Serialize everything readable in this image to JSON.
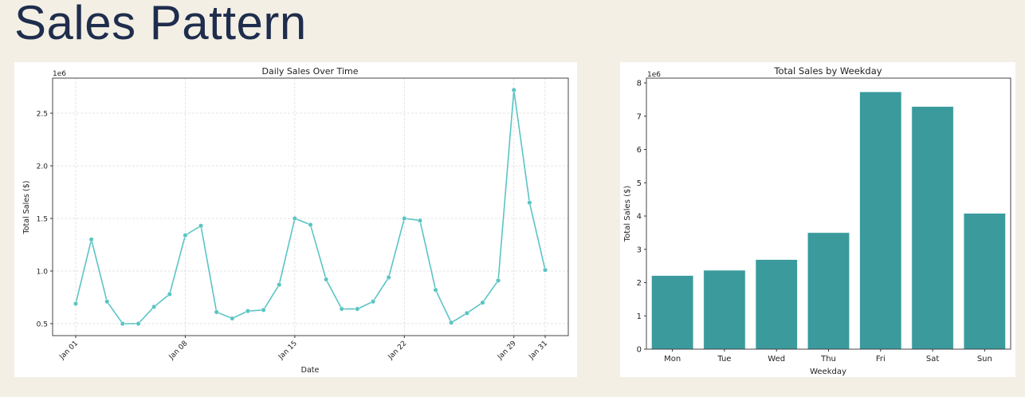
{
  "page": {
    "title": "Sales Pattern"
  },
  "chart_data": [
    {
      "type": "line",
      "title": "Daily Sales Over Time",
      "xlabel": "Date",
      "ylabel": "Total Sales ($)",
      "y_offset_label": "1e6",
      "x": [
        "Jan 01",
        "Jan 02",
        "Jan 03",
        "Jan 04",
        "Jan 05",
        "Jan 06",
        "Jan 07",
        "Jan 08",
        "Jan 09",
        "Jan 10",
        "Jan 11",
        "Jan 12",
        "Jan 13",
        "Jan 14",
        "Jan 15",
        "Jan 16",
        "Jan 17",
        "Jan 18",
        "Jan 19",
        "Jan 20",
        "Jan 21",
        "Jan 22",
        "Jan 23",
        "Jan 24",
        "Jan 25",
        "Jan 26",
        "Jan 27",
        "Jan 28",
        "Jan 29",
        "Jan 30",
        "Jan 31"
      ],
      "values": [
        0.69,
        1.3,
        0.71,
        0.5,
        0.5,
        0.66,
        0.78,
        1.34,
        1.43,
        0.61,
        0.55,
        0.62,
        0.63,
        0.87,
        1.5,
        1.44,
        0.92,
        0.64,
        0.64,
        0.71,
        0.94,
        1.5,
        1.48,
        0.82,
        0.51,
        0.6,
        0.7,
        0.91,
        2.72,
        1.65,
        1.01
      ],
      "x_ticks": [
        "Jan 01",
        "Jan 08",
        "Jan 15",
        "Jan 22",
        "Jan 29",
        "Jan 31"
      ],
      "y_ticks": [
        "0.5",
        "1.0",
        "1.5",
        "2.0",
        "2.5"
      ],
      "ylim": [
        0.39,
        2.83
      ],
      "grid": true,
      "color": "#5bc4c4"
    },
    {
      "type": "bar",
      "title": "Total Sales by Weekday",
      "xlabel": "Weekday",
      "ylabel": "Total Sales ($)",
      "y_offset_label": "1e6",
      "categories": [
        "Mon",
        "Tue",
        "Wed",
        "Thu",
        "Fri",
        "Sat",
        "Sun"
      ],
      "values": [
        2.21,
        2.37,
        2.69,
        3.5,
        7.73,
        7.29,
        4.08
      ],
      "y_ticks": [
        "0",
        "1",
        "2",
        "3",
        "4",
        "5",
        "6",
        "7",
        "8"
      ],
      "ylim": [
        0,
        8.1
      ],
      "grid": false,
      "color": "#3a9a9c"
    }
  ]
}
